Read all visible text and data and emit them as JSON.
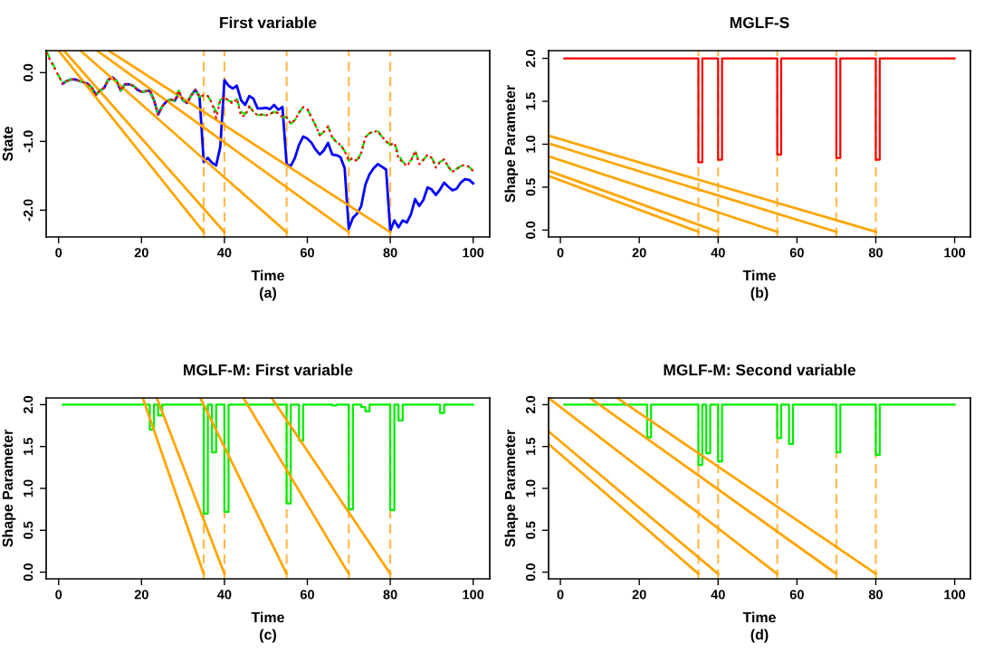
{
  "chart_data": [
    {
      "type": "line",
      "title": "First variable",
      "xlabel": "Time",
      "ylabel": "State",
      "annotations": [
        "(a)"
      ],
      "xlim": [
        -3,
        104
      ],
      "ylim": [
        -2.39,
        0.32
      ],
      "xticks": [
        0,
        20,
        40,
        60,
        80,
        100
      ],
      "yticks": [
        {
          "value": 0,
          "label": "0.0"
        },
        {
          "value": -1,
          "label": "-1.0"
        },
        {
          "value": -2,
          "label": "-2.0"
        }
      ],
      "ref_lines": [
        {
          "axis": "x",
          "value": 35,
          "color": "#ffb847",
          "line_style": "dashed"
        },
        {
          "axis": "x",
          "value": 40,
          "color": "#ffb847",
          "line_style": "dashed"
        },
        {
          "axis": "x",
          "value": 55,
          "color": "#ffb847",
          "line_style": "dashed"
        },
        {
          "axis": "x",
          "value": 70,
          "color": "#ffb847",
          "line_style": "dashed"
        },
        {
          "axis": "x",
          "value": 80,
          "color": "#ffb847",
          "line_style": "dashed"
        }
      ],
      "x": [
        -3,
        1,
        2,
        3,
        4,
        5,
        6,
        7,
        8,
        9,
        10,
        11,
        12,
        13,
        14,
        15,
        16,
        17,
        18,
        19,
        20,
        21,
        22,
        23,
        24,
        25,
        26,
        27,
        28,
        29,
        30,
        31,
        32,
        33,
        34,
        35,
        36,
        37,
        38,
        39,
        40,
        41,
        42,
        43,
        44,
        45,
        46,
        47,
        48,
        49,
        50,
        51,
        52,
        53,
        54,
        55,
        56,
        57,
        58,
        59,
        60,
        61,
        62,
        63,
        64,
        65,
        66,
        67,
        68,
        69,
        70,
        71,
        72,
        73,
        74,
        75,
        76,
        77,
        78,
        79,
        80,
        81,
        82,
        83,
        84,
        85,
        86,
        87,
        88,
        89,
        90,
        91,
        92,
        93,
        94,
        95,
        96,
        97,
        98,
        99,
        100
      ],
      "series": [
        {
          "color": "#ff0000",
          "line_style": "dotted",
          "values": [
            0.29,
            -0.16,
            -0.12,
            -0.1,
            -0.1,
            -0.12,
            -0.14,
            -0.16,
            -0.22,
            -0.32,
            -0.26,
            -0.22,
            -0.1,
            -0.07,
            -0.12,
            -0.26,
            -0.17,
            -0.17,
            -0.19,
            -0.25,
            -0.28,
            -0.27,
            -0.26,
            -0.4,
            -0.61,
            -0.49,
            -0.42,
            -0.39,
            -0.41,
            -0.26,
            -0.4,
            -0.44,
            -0.33,
            -0.25,
            -0.35,
            -0.33,
            -0.34,
            -0.44,
            -0.66,
            -0.4,
            -0.35,
            -0.41,
            -0.45,
            -0.38,
            -0.63,
            -0.63,
            -0.49,
            -0.57,
            -0.62,
            -0.61,
            -0.62,
            -0.6,
            -0.57,
            -0.59,
            -0.65,
            -0.65,
            -0.74,
            -0.69,
            -0.58,
            -0.5,
            -0.53,
            -0.65,
            -0.77,
            -0.91,
            -0.86,
            -0.78,
            -0.94,
            -1.01,
            -1.05,
            -1.14,
            -1.28,
            -1.24,
            -1.29,
            -1.17,
            -0.94,
            -0.88,
            -0.86,
            -0.85,
            -0.93,
            -1.0,
            -1.05,
            -1.02,
            -1.25,
            -1.3,
            -1.36,
            -1.28,
            -1.14,
            -1.33,
            -1.27,
            -1.19,
            -1.24,
            -1.38,
            -1.3,
            -1.26,
            -1.37,
            -1.44,
            -1.4,
            -1.36,
            -1.34,
            -1.37,
            -1.43
          ]
        },
        {
          "color": "#00ee00",
          "line_style": "dashed",
          "values": [
            0.32,
            -0.16,
            -0.12,
            -0.1,
            -0.1,
            -0.12,
            -0.14,
            -0.16,
            -0.22,
            -0.32,
            -0.26,
            -0.22,
            -0.1,
            -0.07,
            -0.12,
            -0.26,
            -0.17,
            -0.17,
            -0.19,
            -0.25,
            -0.28,
            -0.27,
            -0.26,
            -0.4,
            -0.61,
            -0.49,
            -0.42,
            -0.39,
            -0.41,
            -0.26,
            -0.4,
            -0.44,
            -0.33,
            -0.25,
            -0.35,
            -0.33,
            -0.34,
            -0.44,
            -0.57,
            -0.4,
            -0.35,
            -0.41,
            -0.42,
            -0.38,
            -0.57,
            -0.6,
            -0.49,
            -0.57,
            -0.62,
            -0.61,
            -0.62,
            -0.6,
            -0.57,
            -0.59,
            -0.65,
            -0.65,
            -0.74,
            -0.69,
            -0.58,
            -0.5,
            -0.53,
            -0.65,
            -0.77,
            -0.91,
            -0.86,
            -0.78,
            -0.94,
            -1.01,
            -1.05,
            -1.14,
            -1.28,
            -1.24,
            -1.27,
            -1.17,
            -0.94,
            -0.88,
            -0.86,
            -0.85,
            -0.93,
            -1.0,
            -1.05,
            -1.02,
            -1.19,
            -1.3,
            -1.32,
            -1.28,
            -1.14,
            -1.29,
            -1.27,
            -1.19,
            -1.24,
            -1.35,
            -1.3,
            -1.26,
            -1.37,
            -1.44,
            -1.4,
            -1.36,
            -1.34,
            -1.37,
            -1.43
          ]
        },
        {
          "color": "#0000ff",
          "line_style": "solid",
          "values": [
            null,
            -0.16,
            -0.12,
            -0.1,
            -0.1,
            -0.12,
            -0.14,
            -0.16,
            -0.22,
            -0.32,
            -0.26,
            -0.22,
            -0.1,
            -0.07,
            -0.12,
            -0.26,
            -0.17,
            -0.17,
            -0.19,
            -0.25,
            -0.28,
            -0.27,
            -0.26,
            -0.4,
            -0.61,
            -0.49,
            -0.42,
            -0.39,
            -0.41,
            -0.3,
            -0.4,
            -0.44,
            -0.33,
            -0.25,
            -0.35,
            -1.3,
            -1.24,
            -1.31,
            -1.35,
            -1.08,
            -0.11,
            -0.19,
            -0.23,
            -0.19,
            -0.4,
            -0.47,
            -0.34,
            -0.38,
            -0.52,
            -0.52,
            -0.51,
            -0.53,
            -0.47,
            -0.54,
            -0.5,
            -1.33,
            -1.36,
            -1.24,
            -1.05,
            -0.93,
            -0.96,
            -1.02,
            -1.12,
            -1.19,
            -1.13,
            -1.02,
            -1.19,
            -1.2,
            -1.23,
            -1.39,
            -2.27,
            -2.11,
            -2.05,
            -1.94,
            -1.63,
            -1.48,
            -1.39,
            -1.33,
            -1.37,
            -1.41,
            -2.3,
            -2.15,
            -2.25,
            -2.15,
            -2.18,
            -2.06,
            -1.84,
            -1.94,
            -1.85,
            -1.67,
            -1.7,
            -1.78,
            -1.7,
            -1.6,
            -1.66,
            -1.71,
            -1.69,
            -1.6,
            -1.55,
            -1.56,
            -1.61
          ]
        },
        {
          "type": "line",
          "color": "#ffa500",
          "line_style": "solid",
          "x": [
            0,
            35
          ],
          "values": [
            0.32,
            -2.32
          ]
        },
        {
          "type": "line",
          "color": "#ffa500",
          "line_style": "solid",
          "x": [
            1.3,
            40
          ],
          "values": [
            0.32,
            -2.32
          ]
        },
        {
          "type": "line",
          "color": "#ffa500",
          "line_style": "solid",
          "x": [
            5.3,
            55
          ],
          "values": [
            0.32,
            -2.32
          ]
        },
        {
          "type": "line",
          "color": "#ffa500",
          "line_style": "solid",
          "x": [
            9.3,
            70
          ],
          "values": [
            0.32,
            -2.32
          ]
        },
        {
          "type": "line",
          "color": "#ffa500",
          "line_style": "solid",
          "x": [
            12.1,
            80
          ],
          "values": [
            0.32,
            -2.32
          ]
        }
      ]
    },
    {
      "type": "step",
      "title": "MGLF-S",
      "xlabel": "Time",
      "ylabel": "Shape Parameter",
      "annotations": [
        "(b)"
      ],
      "xlim": [
        -3,
        104
      ],
      "ylim": [
        -0.08,
        2.09
      ],
      "xticks": [
        0,
        20,
        40,
        60,
        80,
        100
      ],
      "yticks": [
        {
          "value": 0,
          "label": "0.0"
        },
        {
          "value": 0.5,
          "label": "0.5"
        },
        {
          "value": 1,
          "label": "1.0"
        },
        {
          "value": 1.5,
          "label": "1.5"
        },
        {
          "value": 2,
          "label": "2.0"
        }
      ],
      "ref_lines": [
        {
          "axis": "x",
          "value": 35,
          "color": "#ffb847",
          "line_style": "dashed"
        },
        {
          "axis": "x",
          "value": 40,
          "color": "#ffb847",
          "line_style": "dashed"
        },
        {
          "axis": "x",
          "value": 55,
          "color": "#ffb847",
          "line_style": "dashed"
        },
        {
          "axis": "x",
          "value": 70,
          "color": "#ffb847",
          "line_style": "dashed"
        },
        {
          "axis": "x",
          "value": 80,
          "color": "#ffb847",
          "line_style": "dashed"
        }
      ],
      "series": [
        {
          "color": "#ff0000",
          "line_style": "solid",
          "x": [
            1,
            35,
            36,
            40,
            41,
            55,
            56,
            70,
            71,
            80,
            81,
            100
          ],
          "values": [
            2,
            0.79,
            2,
            0.82,
            2,
            0.88,
            2,
            0.84,
            2,
            0.82,
            2,
            2
          ]
        },
        {
          "type": "line",
          "color": "#ffa500",
          "line_style": "solid",
          "x": [
            -3,
            35
          ],
          "values": [
            0.63,
            -0.02
          ]
        },
        {
          "type": "line",
          "color": "#ffa500",
          "line_style": "solid",
          "x": [
            -3,
            40
          ],
          "values": [
            0.69,
            -0.02
          ]
        },
        {
          "type": "line",
          "color": "#ffa500",
          "line_style": "solid",
          "x": [
            -3,
            55
          ],
          "values": [
            0.86,
            -0.02
          ]
        },
        {
          "type": "line",
          "color": "#ffa500",
          "line_style": "solid",
          "x": [
            -3,
            70
          ],
          "values": [
            1.01,
            -0.02
          ]
        },
        {
          "type": "line",
          "color": "#ffa500",
          "line_style": "solid",
          "x": [
            -3,
            80
          ],
          "values": [
            1.1,
            -0.02
          ]
        }
      ]
    },
    {
      "type": "step",
      "title": "MGLF-M: First variable",
      "xlabel": "Time",
      "ylabel": "Shape Parameter",
      "annotations": [
        "(c)"
      ],
      "xlim": [
        -3,
        104
      ],
      "ylim": [
        -0.08,
        2.08
      ],
      "xticks": [
        0,
        20,
        40,
        60,
        80,
        100
      ],
      "yticks": [
        {
          "value": 0,
          "label": "0.0"
        },
        {
          "value": 0.5,
          "label": "0.5"
        },
        {
          "value": 1,
          "label": "1.0"
        },
        {
          "value": 1.5,
          "label": "1.5"
        },
        {
          "value": 2,
          "label": "2.0"
        }
      ],
      "ref_lines": [
        {
          "axis": "x",
          "value": 35,
          "color": "#ffb847",
          "line_style": "dashed"
        },
        {
          "axis": "x",
          "value": 40,
          "color": "#ffb847",
          "line_style": "dashed"
        },
        {
          "axis": "x",
          "value": 55,
          "color": "#ffb847",
          "line_style": "dashed"
        },
        {
          "axis": "x",
          "value": 70,
          "color": "#ffb847",
          "line_style": "dashed"
        },
        {
          "axis": "x",
          "value": 80,
          "color": "#ffb847",
          "line_style": "dashed"
        }
      ],
      "series": [
        {
          "color": "#00ee00",
          "line_style": "solid",
          "x": [
            1,
            22,
            23,
            24,
            25,
            35,
            36,
            37,
            38,
            40,
            41,
            55,
            56,
            58,
            59,
            66,
            67,
            70,
            71,
            73,
            74,
            75,
            80,
            81,
            82,
            83,
            92,
            93,
            100
          ],
          "values": [
            2,
            1.7,
            2,
            1.87,
            2,
            0.7,
            2,
            1.43,
            2,
            0.72,
            2,
            0.82,
            2,
            1.57,
            2,
            1.99,
            2,
            0.75,
            2,
            1.97,
            1.92,
            2,
            0.74,
            2,
            1.81,
            2,
            1.9,
            2,
            2
          ]
        },
        {
          "type": "line",
          "color": "#ffa500",
          "line_style": "solid",
          "x": [
            20.3,
            35
          ],
          "values": [
            2.08,
            -0.02
          ]
        },
        {
          "type": "line",
          "color": "#ffa500",
          "line_style": "solid",
          "x": [
            23.7,
            40
          ],
          "values": [
            2.08,
            -0.02
          ]
        },
        {
          "type": "line",
          "color": "#ffa500",
          "line_style": "solid",
          "x": [
            34.2,
            55
          ],
          "values": [
            2.08,
            -0.02
          ]
        },
        {
          "type": "line",
          "color": "#ffa500",
          "line_style": "solid",
          "x": [
            44.6,
            70
          ],
          "values": [
            2.08,
            -0.02
          ]
        },
        {
          "type": "line",
          "color": "#ffa500",
          "line_style": "solid",
          "x": [
            51.4,
            80
          ],
          "values": [
            2.08,
            -0.02
          ]
        }
      ]
    },
    {
      "type": "step",
      "title": "MGLF-M: Second variable",
      "xlabel": "Time",
      "ylabel": "Shape Parameter",
      "annotations": [
        "(d)"
      ],
      "xlim": [
        -3,
        104
      ],
      "ylim": [
        -0.08,
        2.08
      ],
      "xticks": [
        0,
        20,
        40,
        60,
        80,
        100
      ],
      "yticks": [
        {
          "value": 0,
          "label": "0.0"
        },
        {
          "value": 0.5,
          "label": "0.5"
        },
        {
          "value": 1,
          "label": "1.0"
        },
        {
          "value": 1.5,
          "label": "1.5"
        },
        {
          "value": 2,
          "label": "2.0"
        }
      ],
      "ref_lines": [
        {
          "axis": "x",
          "value": 35,
          "color": "#ffb847",
          "line_style": "dashed"
        },
        {
          "axis": "x",
          "value": 40,
          "color": "#ffb847",
          "line_style": "dashed"
        },
        {
          "axis": "x",
          "value": 55,
          "color": "#ffb847",
          "line_style": "dashed"
        },
        {
          "axis": "x",
          "value": 70,
          "color": "#ffb847",
          "line_style": "dashed"
        },
        {
          "axis": "x",
          "value": 80,
          "color": "#ffb847",
          "line_style": "dashed"
        }
      ],
      "series": [
        {
          "color": "#00ee00",
          "line_style": "solid",
          "x": [
            1,
            22,
            23,
            35,
            36,
            37,
            38,
            40,
            41,
            55,
            56,
            58,
            59,
            70,
            71,
            80,
            81,
            100
          ],
          "values": [
            2,
            1.61,
            2,
            1.28,
            2,
            1.42,
            2,
            1.32,
            2,
            1.6,
            2,
            1.53,
            2,
            1.43,
            2,
            1.4,
            2,
            2
          ]
        },
        {
          "type": "line",
          "color": "#ffa500",
          "line_style": "solid",
          "x": [
            -3,
            35
          ],
          "values": [
            1.53,
            -0.02
          ]
        },
        {
          "type": "line",
          "color": "#ffa500",
          "line_style": "solid",
          "x": [
            -3,
            40
          ],
          "values": [
            1.68,
            -0.02
          ]
        },
        {
          "type": "line",
          "color": "#ffa500",
          "line_style": "solid",
          "x": [
            -3,
            55
          ],
          "values": [
            2.08,
            -0.02
          ]
        },
        {
          "type": "line",
          "color": "#ffa500",
          "line_style": "solid",
          "x": [
            7.5,
            70
          ],
          "values": [
            2.08,
            -0.02
          ]
        },
        {
          "type": "line",
          "color": "#ffa500",
          "line_style": "solid",
          "x": [
            14.4,
            80
          ],
          "values": [
            2.08,
            -0.02
          ]
        }
      ]
    }
  ]
}
